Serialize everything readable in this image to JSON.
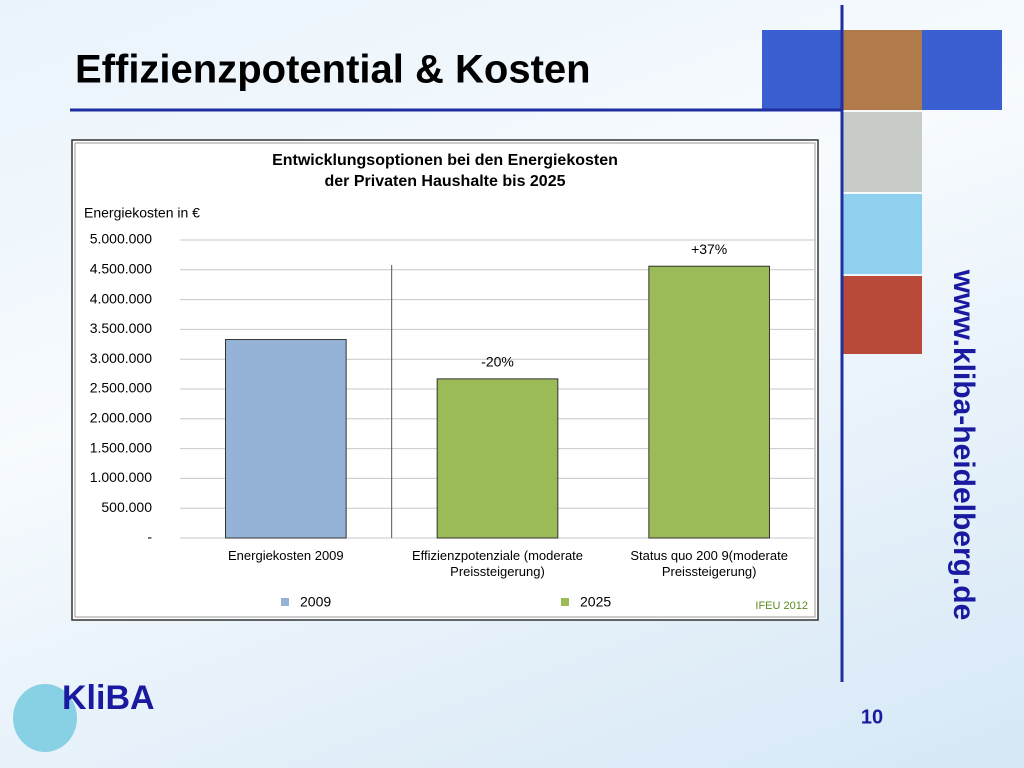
{
  "slide": {
    "title": "Effizienzpotential & Kosten",
    "website": "www.kliba-heidelberg.de",
    "logo": "KliBA",
    "page_number": "10"
  },
  "chart_data": {
    "type": "bar",
    "title": [
      "Entwicklungsoptionen bei den Energiekosten",
      "der Privaten Haushalte bis 2025"
    ],
    "y_label": "Energiekosten in €",
    "categories": [
      "Energiekosten 2009",
      "Effizienzpotenziale (moderate Preissteigerung)",
      "Status quo 200 9(moderate Preissteigerung)"
    ],
    "series": [
      {
        "name": "2009",
        "color": "#95b3d7",
        "values": [
          3330000,
          null,
          null
        ]
      },
      {
        "name": "2025",
        "color": "#9bbb59",
        "values": [
          null,
          2670000,
          4560000
        ]
      }
    ],
    "annotations": [
      "-20%",
      "+37%"
    ],
    "source": "IFEU 2012",
    "ylim": [
      0,
      5000000
    ],
    "yticks": [
      {
        "value": 0,
        "label": "-"
      },
      {
        "value": 500000,
        "label": "500.000"
      },
      {
        "value": 1000000,
        "label": "1.000.000"
      },
      {
        "value": 1500000,
        "label": "1.500.000"
      },
      {
        "value": 2000000,
        "label": "2.000.000"
      },
      {
        "value": 2500000,
        "label": "2.500.000"
      },
      {
        "value": 3000000,
        "label": "3.000.000"
      },
      {
        "value": 3500000,
        "label": "3.500.000"
      },
      {
        "value": 4000000,
        "label": "4.000.000"
      },
      {
        "value": 4500000,
        "label": "4.500.000"
      },
      {
        "value": 5000000,
        "label": "5.000.000"
      }
    ],
    "grid": true,
    "legend": "bottom"
  }
}
